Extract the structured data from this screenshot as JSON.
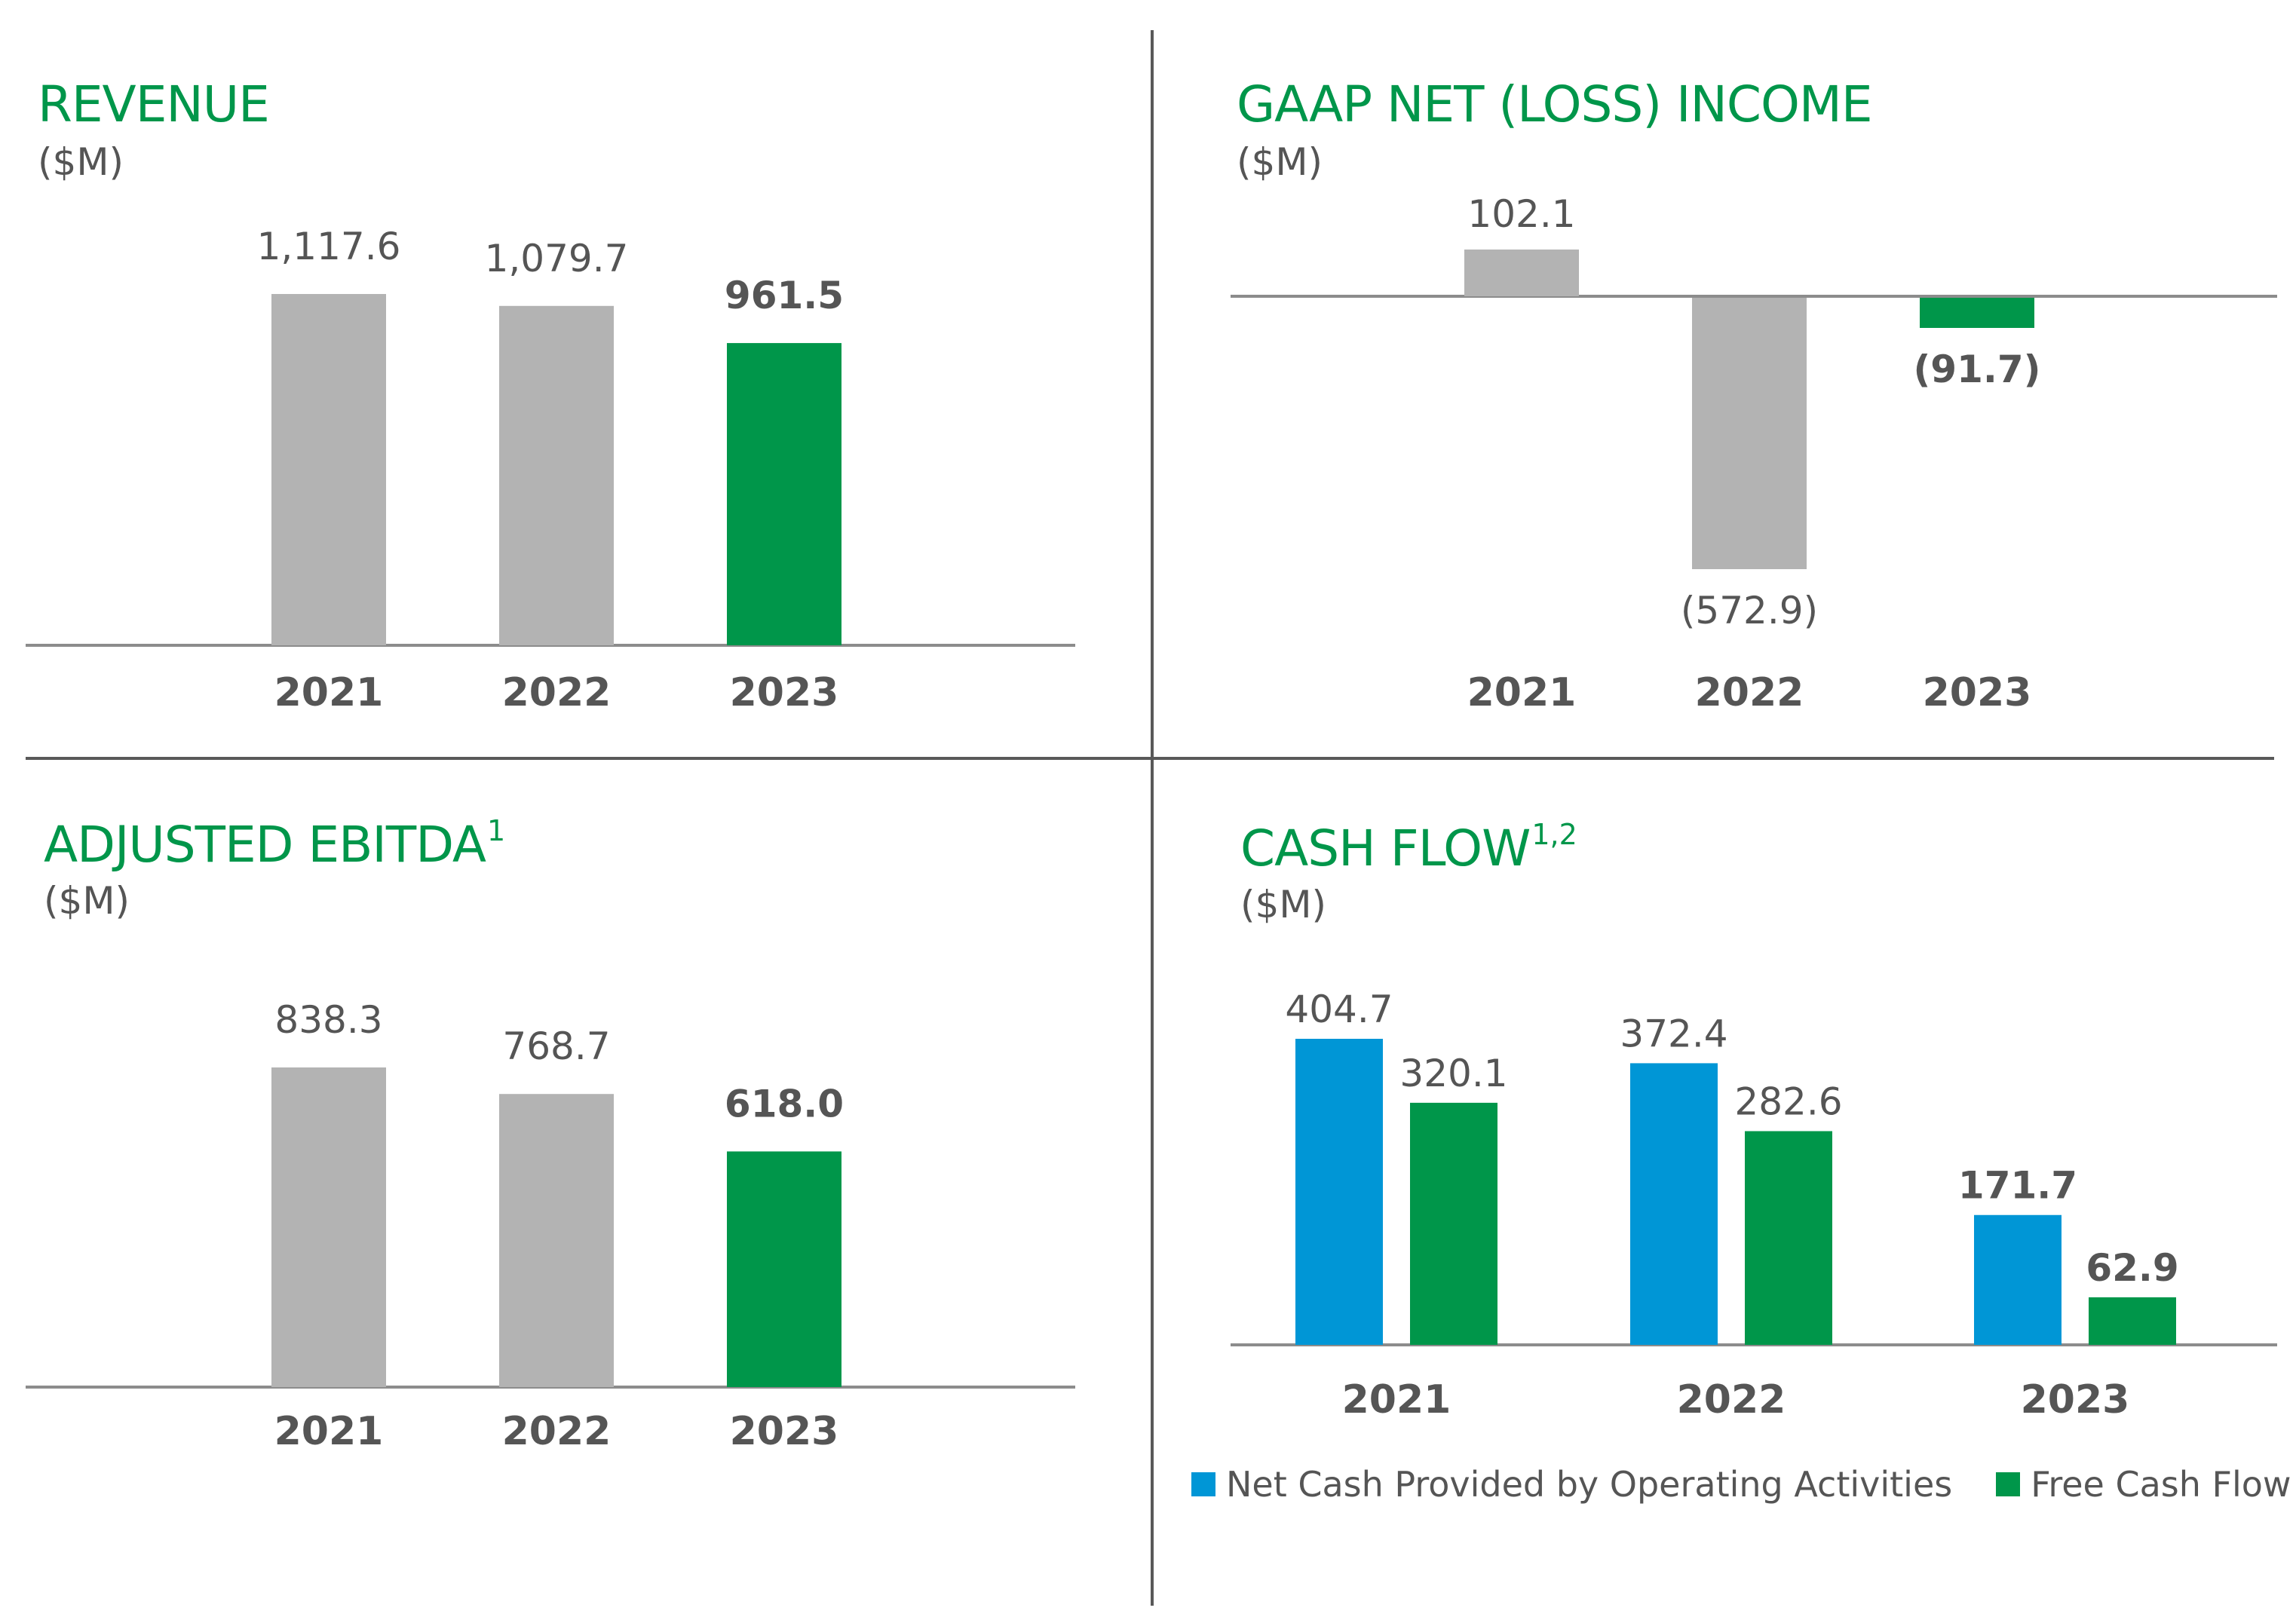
{
  "colors": {
    "gray_bar": "#b3b3b3",
    "green": "#00964a",
    "blue": "#0096d6",
    "text_gray": "#555555",
    "axis": "#8c8c8c"
  },
  "panels": {
    "revenue": {
      "title": "REVENUE",
      "unit": "($M)"
    },
    "net_income": {
      "title": "GAAP NET (LOSS) INCOME",
      "unit": "($M)"
    },
    "ebitda": {
      "title": "ADJUSTED EBITDA",
      "footnote": "1",
      "unit": "($M)"
    },
    "cash_flow": {
      "title": "CASH FLOW",
      "footnote": "1,2",
      "unit": "($M)"
    }
  },
  "chart_data": [
    {
      "id": "revenue",
      "type": "bar",
      "title": "REVENUE",
      "ylabel": "($M)",
      "categories": [
        "2021",
        "2022",
        "2023"
      ],
      "values": [
        1117.6,
        1079.7,
        961.5
      ],
      "labels": [
        "1,117.6",
        "1,079.7",
        "961.5"
      ],
      "highlight_index": 2,
      "ylim": [
        0,
        1117.6
      ]
    },
    {
      "id": "net_income",
      "type": "bar",
      "title": "GAAP NET (LOSS) INCOME",
      "ylabel": "($M)",
      "categories": [
        "2021",
        "2022",
        "2023"
      ],
      "values": [
        102.1,
        -572.9,
        -91.7
      ],
      "labels": [
        "102.1",
        "(572.9)",
        "(91.7)"
      ],
      "highlight_index": 2,
      "ylim": [
        -572.9,
        102.1
      ]
    },
    {
      "id": "ebitda",
      "type": "bar",
      "title": "ADJUSTED EBITDA",
      "ylabel": "($M)",
      "categories": [
        "2021",
        "2022",
        "2023"
      ],
      "values": [
        838.3,
        768.7,
        618.0
      ],
      "labels": [
        "838.3",
        "768.7",
        "618.0"
      ],
      "highlight_index": 2,
      "ylim": [
        0,
        838.3
      ]
    },
    {
      "id": "cash_flow",
      "type": "bar",
      "title": "CASH FLOW",
      "ylabel": "($M)",
      "categories": [
        "2021",
        "2022",
        "2023"
      ],
      "highlight_index": 2,
      "series": [
        {
          "name": "Net Cash Provided by Operating Activities",
          "values": [
            404.7,
            372.4,
            171.7
          ],
          "labels": [
            "404.7",
            "372.4",
            "171.7"
          ],
          "color": "#0096d6"
        },
        {
          "name": "Free Cash Flow",
          "values": [
            320.1,
            282.6,
            62.9
          ],
          "labels": [
            "320.1",
            "282.6",
            "62.9"
          ],
          "color": "#00964a"
        }
      ],
      "ylim": [
        0,
        404.7
      ],
      "legend": "bottom"
    }
  ]
}
